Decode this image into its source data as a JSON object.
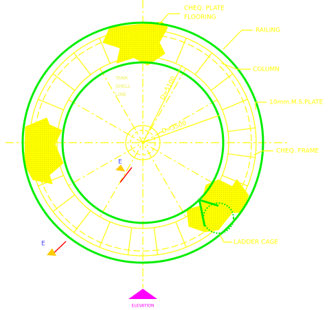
{
  "labels": {
    "flooring": [
      "CHEQ. PLATE",
      "FLOORING"
    ],
    "railing": "RAILING",
    "column": "COLUMN",
    "plate": "10mm.M.S.PLATE",
    "frame": "CHEQ. FRAME",
    "ladder": "LADDER CAGE",
    "tank_shell": [
      "TANK",
      "SHELL",
      "LINE"
    ],
    "outer_dia": "D=5100",
    "inner_dia": "D=3500",
    "section_mark_1": "E",
    "section_mark_2": "E",
    "elevation": "ELEVATION"
  }
}
